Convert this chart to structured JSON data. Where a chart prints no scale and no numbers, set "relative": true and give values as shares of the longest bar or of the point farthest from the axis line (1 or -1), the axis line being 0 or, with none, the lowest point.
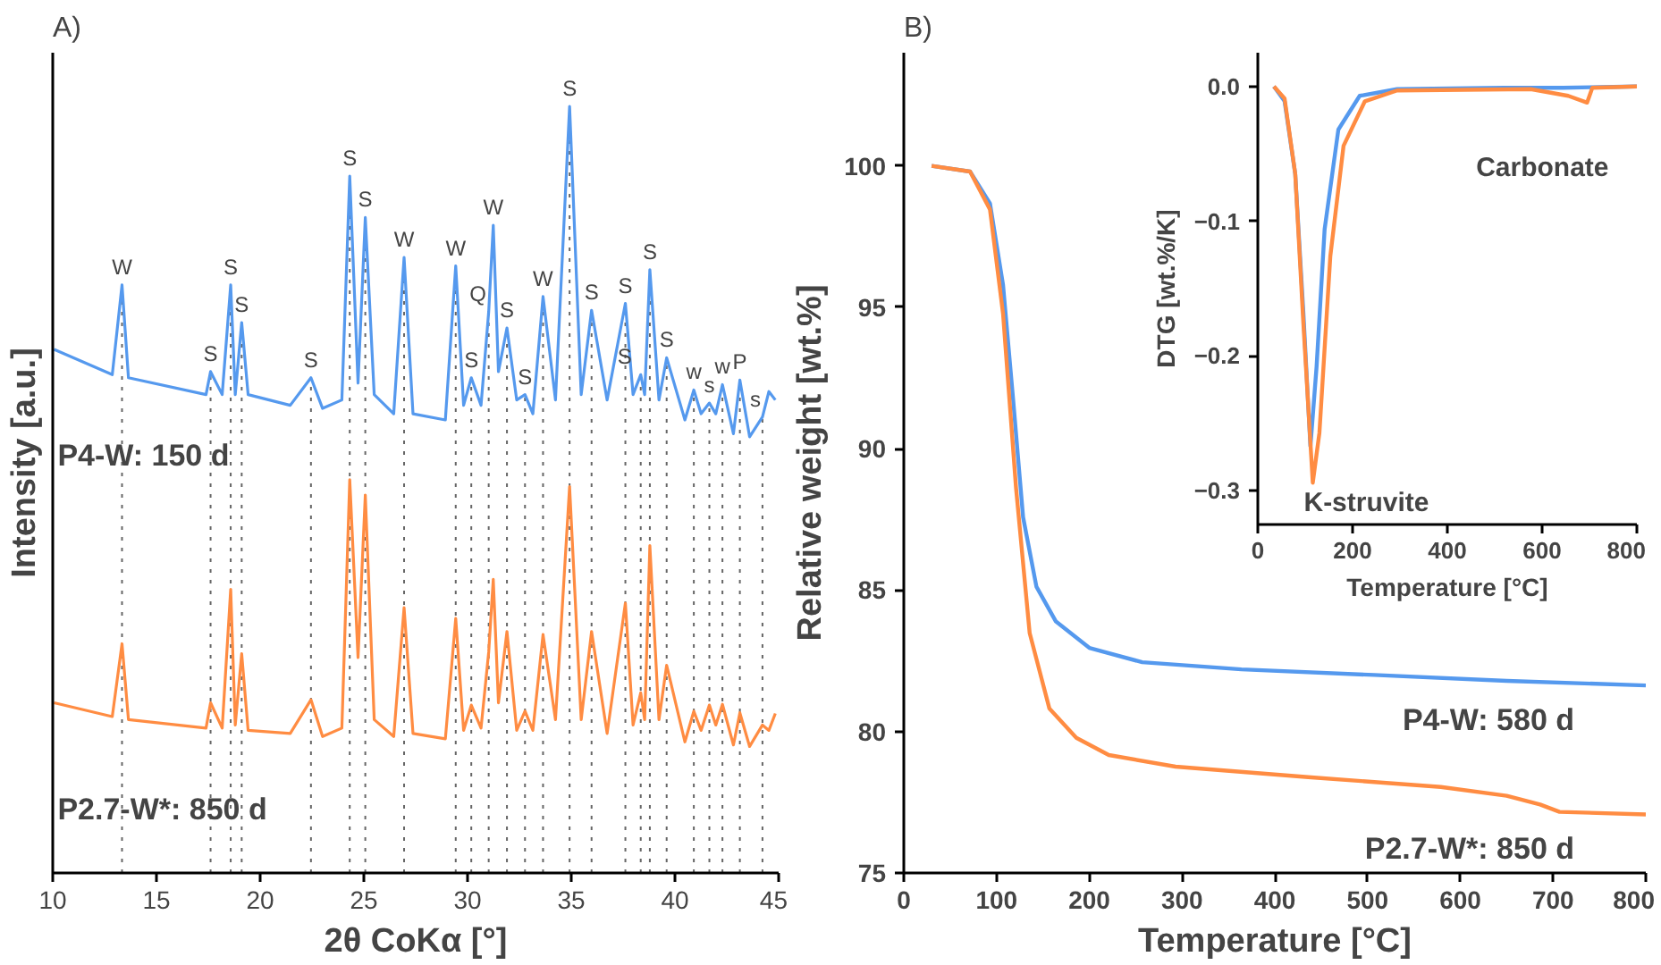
{
  "chart_data": [
    {
      "type": "line",
      "title": "A)",
      "xlabel": "2θ CoKα [°]",
      "ylabel": "Intensity [a.u.]",
      "relative": true,
      "tick_labels": "x",
      "xlim": [
        10,
        45
      ],
      "xticks": [
        10,
        15,
        20,
        25,
        30,
        35,
        40,
        45
      ],
      "series": [
        {
          "name": "P4-W: 150 d",
          "color": "#5599ee",
          "x": [
            10.06,
            12.87,
            13.34,
            13.65,
            17.39,
            17.61,
            18.17,
            18.58,
            18.8,
            19.11,
            19.42,
            21.45,
            22.45,
            23.01,
            23.94,
            24.32,
            24.72,
            25.07,
            25.5,
            26.44,
            26.94,
            27.37,
            28.93,
            29.43,
            29.81,
            30.18,
            30.65,
            31.02,
            31.24,
            31.49,
            31.9,
            32.37,
            32.77,
            33.15,
            33.64,
            34.24,
            34.92,
            35.48,
            35.98,
            36.73,
            37.61,
            37.98,
            38.35,
            38.54,
            38.79,
            39.23,
            39.6,
            40.48,
            40.91,
            41.26,
            41.66,
            41.97,
            42.29,
            42.82,
            43.13,
            43.6,
            44.22,
            44.53,
            44.84
          ],
          "values": [
            0.683,
            0.65,
            0.767,
            0.646,
            0.624,
            0.654,
            0.624,
            0.767,
            0.624,
            0.718,
            0.624,
            0.61,
            0.646,
            0.606,
            0.617,
            0.909,
            0.639,
            0.855,
            0.624,
            0.599,
            0.803,
            0.599,
            0.591,
            0.792,
            0.61,
            0.646,
            0.61,
            0.732,
            0.845,
            0.654,
            0.711,
            0.617,
            0.624,
            0.599,
            0.752,
            0.617,
            1.0,
            0.624,
            0.734,
            0.617,
            0.743,
            0.624,
            0.65,
            0.624,
            0.787,
            0.617,
            0.672,
            0.591,
            0.63,
            0.599,
            0.613,
            0.599,
            0.637,
            0.573,
            0.643,
            0.569,
            0.595,
            0.628,
            0.617
          ]
        },
        {
          "name": "P2.7-W*:  850 d",
          "color": "#ff8c42",
          "x": [
            10.06,
            12.87,
            13.34,
            13.65,
            17.39,
            17.61,
            18.17,
            18.58,
            18.8,
            19.11,
            19.42,
            21.45,
            22.45,
            23.01,
            23.94,
            24.32,
            24.72,
            25.07,
            25.5,
            26.44,
            26.94,
            27.37,
            28.93,
            29.43,
            29.81,
            30.18,
            30.65,
            31.02,
            31.24,
            31.49,
            31.9,
            32.37,
            32.77,
            33.15,
            33.64,
            34.24,
            34.92,
            35.48,
            35.98,
            36.73,
            37.61,
            37.98,
            38.35,
            38.54,
            38.79,
            39.23,
            39.6,
            40.48,
            40.91,
            41.26,
            41.66,
            41.97,
            42.29,
            42.82,
            43.13,
            43.6,
            44.22,
            44.53,
            44.84
          ],
          "values": [
            0.222,
            0.204,
            0.299,
            0.2,
            0.189,
            0.222,
            0.189,
            0.37,
            0.193,
            0.286,
            0.186,
            0.182,
            0.226,
            0.178,
            0.189,
            0.513,
            0.281,
            0.493,
            0.2,
            0.178,
            0.346,
            0.182,
            0.175,
            0.332,
            0.186,
            0.219,
            0.189,
            0.288,
            0.383,
            0.222,
            0.315,
            0.186,
            0.211,
            0.186,
            0.311,
            0.2,
            0.504,
            0.2,
            0.315,
            0.182,
            0.352,
            0.193,
            0.235,
            0.2,
            0.427,
            0.2,
            0.271,
            0.171,
            0.211,
            0.186,
            0.219,
            0.193,
            0.22,
            0.167,
            0.209,
            0.165,
            0.193,
            0.186,
            0.208
          ]
        }
      ],
      "annotations": [
        {
          "text": "W",
          "x": 13.34,
          "y": 0.767
        },
        {
          "text": "S",
          "x": 17.61,
          "y": 0.654
        },
        {
          "text": "S",
          "x": 18.58,
          "y": 0.767
        },
        {
          "text": "S",
          "x": 19.11,
          "y": 0.718
        },
        {
          "text": "S",
          "x": 22.45,
          "y": 0.646
        },
        {
          "text": "S",
          "x": 24.32,
          "y": 0.909
        },
        {
          "text": "S",
          "x": 25.07,
          "y": 0.855
        },
        {
          "text": "W",
          "x": 26.94,
          "y": 0.803
        },
        {
          "text": "W",
          "x": 29.43,
          "y": 0.792
        },
        {
          "text": "S",
          "x": 30.18,
          "y": 0.646
        },
        {
          "text": "Q",
          "x": 31.02,
          "y": 0.732
        },
        {
          "text": "W",
          "x": 31.24,
          "y": 0.845
        },
        {
          "text": "S",
          "x": 31.9,
          "y": 0.711
        },
        {
          "text": "S",
          "x": 32.77,
          "y": 0.624
        },
        {
          "text": "W",
          "x": 33.64,
          "y": 0.752
        },
        {
          "text": "S",
          "x": 34.92,
          "y": 1.0
        },
        {
          "text": "S",
          "x": 35.98,
          "y": 0.734
        },
        {
          "text": "S",
          "x": 37.61,
          "y": 0.743
        },
        {
          "text": "S",
          "x": 38.35,
          "y": 0.65
        },
        {
          "text": "S",
          "x": 38.79,
          "y": 0.787
        },
        {
          "text": "S",
          "x": 39.6,
          "y": 0.672
        },
        {
          "text": "w",
          "x": 40.91,
          "y": 0.63
        },
        {
          "text": "s",
          "x": 41.66,
          "y": 0.613
        },
        {
          "text": "w",
          "x": 42.29,
          "y": 0.637
        },
        {
          "text": "P",
          "x": 43.13,
          "y": 0.643
        },
        {
          "text": "s",
          "x": 44.22,
          "y": 0.595
        }
      ],
      "ref_lines": [
        {
          "axis": "x",
          "value": 13.34,
          "color": "#666666",
          "line_style": "dotted"
        },
        {
          "axis": "x",
          "value": 17.61,
          "color": "#666666",
          "line_style": "dotted"
        },
        {
          "axis": "x",
          "value": 18.58,
          "color": "#666666",
          "line_style": "dotted"
        },
        {
          "axis": "x",
          "value": 19.11,
          "color": "#666666",
          "line_style": "dotted"
        },
        {
          "axis": "x",
          "value": 22.45,
          "color": "#666666",
          "line_style": "dotted"
        },
        {
          "axis": "x",
          "value": 24.32,
          "color": "#666666",
          "line_style": "dotted"
        },
        {
          "axis": "x",
          "value": 25.07,
          "color": "#666666",
          "line_style": "dotted"
        },
        {
          "axis": "x",
          "value": 26.94,
          "color": "#666666",
          "line_style": "dotted"
        },
        {
          "axis": "x",
          "value": 29.43,
          "color": "#666666",
          "line_style": "dotted"
        },
        {
          "axis": "x",
          "value": 30.18,
          "color": "#666666",
          "line_style": "dotted"
        },
        {
          "axis": "x",
          "value": 31.02,
          "color": "#666666",
          "line_style": "dotted"
        },
        {
          "axis": "x",
          "value": 31.9,
          "color": "#666666",
          "line_style": "dotted"
        },
        {
          "axis": "x",
          "value": 32.77,
          "color": "#666666",
          "line_style": "dotted"
        },
        {
          "axis": "x",
          "value": 33.64,
          "color": "#666666",
          "line_style": "dotted"
        },
        {
          "axis": "x",
          "value": 34.92,
          "color": "#666666",
          "line_style": "dotted"
        },
        {
          "axis": "x",
          "value": 35.98,
          "color": "#666666",
          "line_style": "dotted"
        },
        {
          "axis": "x",
          "value": 37.61,
          "color": "#666666",
          "line_style": "dotted"
        },
        {
          "axis": "x",
          "value": 38.35,
          "color": "#666666",
          "line_style": "dotted"
        },
        {
          "axis": "x",
          "value": 38.79,
          "color": "#666666",
          "line_style": "dotted"
        },
        {
          "axis": "x",
          "value": 39.6,
          "color": "#666666",
          "line_style": "dotted"
        },
        {
          "axis": "x",
          "value": 40.91,
          "color": "#666666",
          "line_style": "dotted"
        },
        {
          "axis": "x",
          "value": 41.66,
          "color": "#666666",
          "line_style": "dotted"
        },
        {
          "axis": "x",
          "value": 42.29,
          "color": "#666666",
          "line_style": "dotted"
        },
        {
          "axis": "x",
          "value": 43.13,
          "color": "#666666",
          "line_style": "dotted"
        },
        {
          "axis": "x",
          "value": 44.22,
          "color": "#666666",
          "line_style": "dotted"
        }
      ]
    },
    {
      "type": "line",
      "title": "B)",
      "xlabel": "Temperature [°C]",
      "ylabel": "Relative weight [wt.%]",
      "xlim": [
        0,
        800
      ],
      "ylim": [
        75,
        104
      ],
      "xticks": [
        0,
        100,
        200,
        300,
        400,
        500,
        600,
        700,
        800
      ],
      "yticks": [
        75,
        80,
        85,
        90,
        95,
        100
      ],
      "series": [
        {
          "name": "P4-W: 580 d",
          "color": "#5599ee",
          "x": [
            30,
            71.4,
            92.9,
            107,
            118,
            128.6,
            143,
            164,
            200,
            257,
            364,
            507,
            650,
            800
          ],
          "values": [
            100,
            99.8,
            98.67,
            95.79,
            91.69,
            87.58,
            85.12,
            83.89,
            82.96,
            82.45,
            82.2,
            82.0,
            81.79,
            81.63
          ]
        },
        {
          "name": "P2.7-W*: 850 d",
          "color": "#ff8c42",
          "x": [
            30,
            71.4,
            92.9,
            107,
            121,
            135.7,
            157,
            186,
            221,
            293,
            436,
            579,
            650,
            686,
            707,
            800
          ],
          "values": [
            100,
            99.8,
            98.46,
            94.77,
            88.61,
            83.48,
            80.81,
            79.78,
            79.17,
            78.76,
            78.39,
            78.04,
            77.73,
            77.42,
            77.16,
            77.07
          ]
        }
      ]
    },
    {
      "type": "line",
      "xlabel": "Temperature [°C]",
      "ylabel": "DTG [wt.%/K]",
      "xlim": [
        0,
        800
      ],
      "ylim": [
        -0.325,
        0.025
      ],
      "xticks": [
        0,
        200,
        400,
        600,
        800
      ],
      "yticks": [
        -0.3,
        -0.2,
        -0.1,
        {
          "value": 0,
          "label": "0.0"
        }
      ],
      "series": [
        {
          "color": "#5599ee",
          "x": [
            34,
            56.5,
            79,
            96,
            111,
            124,
            141,
            170,
            215,
            294,
            520,
            576,
            644,
            800
          ],
          "values": [
            0,
            -0.011,
            -0.065,
            -0.167,
            -0.267,
            -0.208,
            -0.106,
            -0.032,
            -0.007,
            -0.002,
            -0.001,
            -0.001,
            -0.001,
            0
          ]
        },
        {
          "color": "#ff8c42",
          "x": [
            34,
            56.5,
            79,
            96,
            116,
            130,
            153,
            181,
            226,
            294,
            576,
            655,
            695,
            706,
            800
          ],
          "values": [
            0,
            -0.009,
            -0.065,
            -0.175,
            -0.294,
            -0.257,
            -0.126,
            -0.044,
            -0.011,
            -0.003,
            -0.002,
            -0.007,
            -0.012,
            -0.001,
            0
          ]
        }
      ],
      "annotations": [
        {
          "text": "Carbonate",
          "x": 695,
          "y": -0.012
        },
        {
          "text": "K-struvite",
          "x": 116,
          "y": -0.294
        }
      ]
    }
  ]
}
